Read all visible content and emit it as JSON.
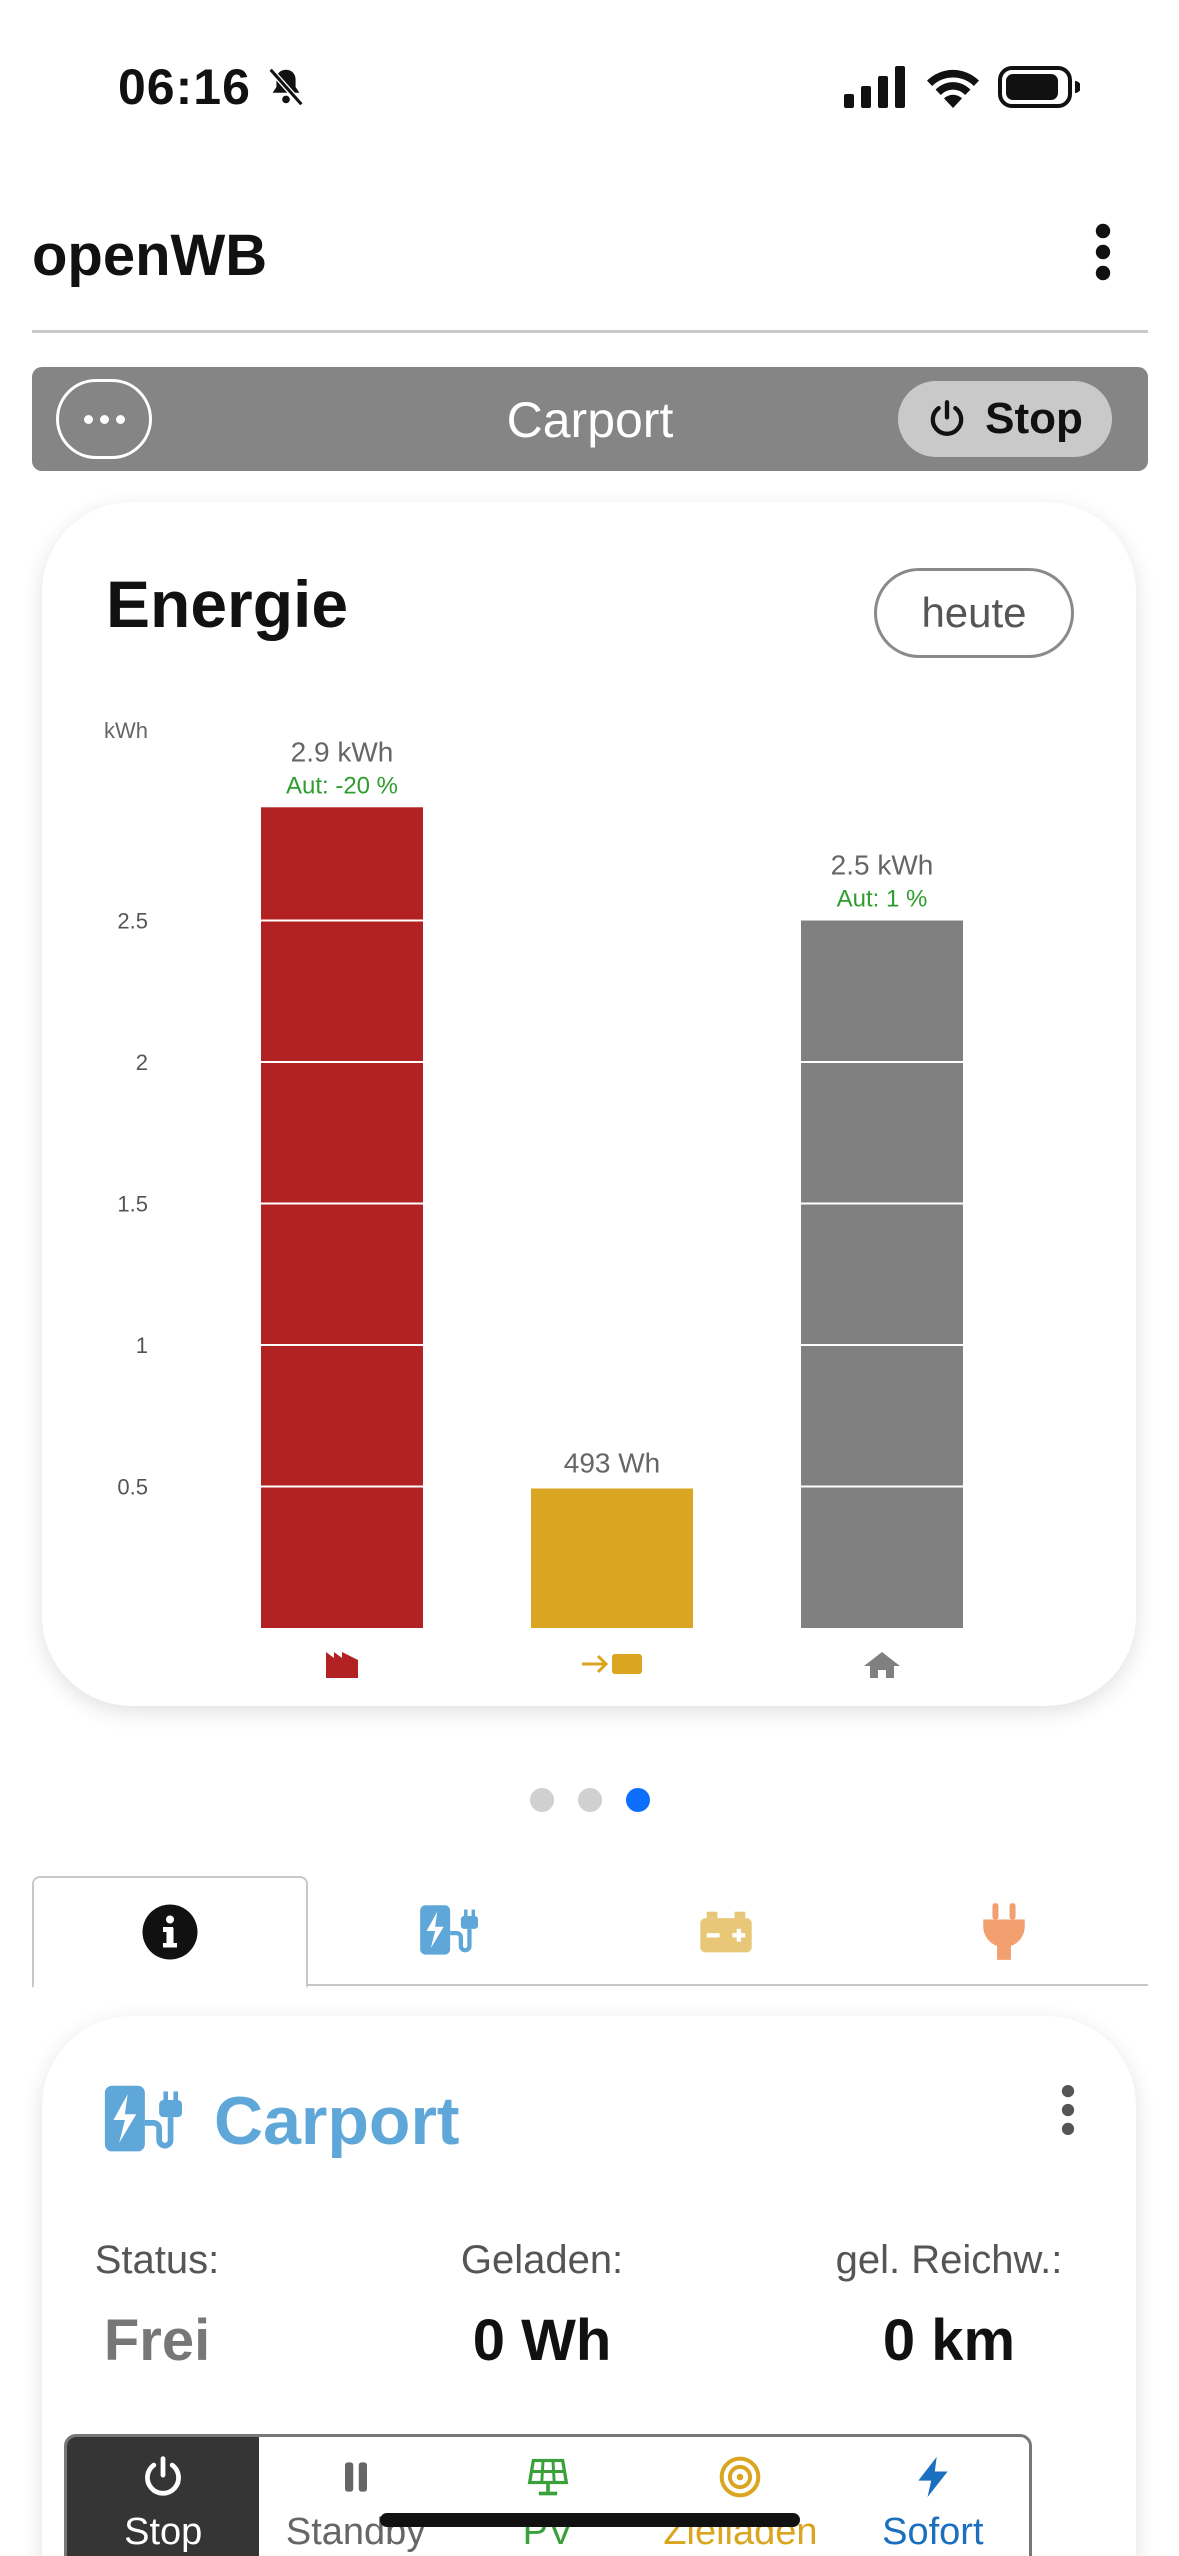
{
  "status_bar": {
    "time": "06:16"
  },
  "header": {
    "title": "openWB"
  },
  "chargepoint_bar": {
    "title": "Carport",
    "stop_label": "Stop"
  },
  "energy": {
    "title": "Energie",
    "period_button": "heute"
  },
  "chart_data": {
    "type": "bar",
    "ylabel": "kWh",
    "ylim": [
      0,
      3.2
    ],
    "yticks": [
      "0.5",
      "1",
      "1.5",
      "2",
      "2.5"
    ],
    "categories": [
      "grid-import",
      "battery-charge",
      "house"
    ],
    "values": [
      2.9,
      0.493,
      2.5
    ],
    "value_labels": [
      "2.9 kWh",
      "493 Wh",
      "2.5 kWh"
    ],
    "autarky_labels": [
      "Aut: -20 %",
      "",
      "Aut: 1 %"
    ],
    "colors": [
      "#b22222",
      "#daa520",
      "#808080"
    ],
    "icons": [
      "factory-icon",
      "battery-charge-icon",
      "house-icon"
    ]
  },
  "pager": {
    "count": 3,
    "active": 2
  },
  "tabs": [
    {
      "icon": "info-icon",
      "active": true
    },
    {
      "icon": "charger-icon",
      "color": "#5fa7d9"
    },
    {
      "icon": "battery-icon",
      "color": "#e8c878"
    },
    {
      "icon": "plug-icon",
      "color": "#f2a070"
    }
  ],
  "chargepoint": {
    "name": "Carport",
    "status_label": "Status:",
    "status_value": "Frei",
    "charged_label": "Geladen:",
    "charged_value": "0 Wh",
    "range_label": "gel. Reichw.:",
    "range_value": "0 km"
  },
  "modes": [
    {
      "label": "Stop",
      "icon": "power-icon",
      "color": "#ffffff",
      "active": true
    },
    {
      "label": "Standby",
      "icon": "pause-icon",
      "color": "#666666"
    },
    {
      "label": "PV",
      "icon": "solar-panel-icon",
      "color": "#3aa03a"
    },
    {
      "label": "Zielladen",
      "icon": "target-icon",
      "color": "#daa520"
    },
    {
      "label": "Sofort",
      "icon": "bolt-icon",
      "color": "#1a6fbf"
    }
  ]
}
